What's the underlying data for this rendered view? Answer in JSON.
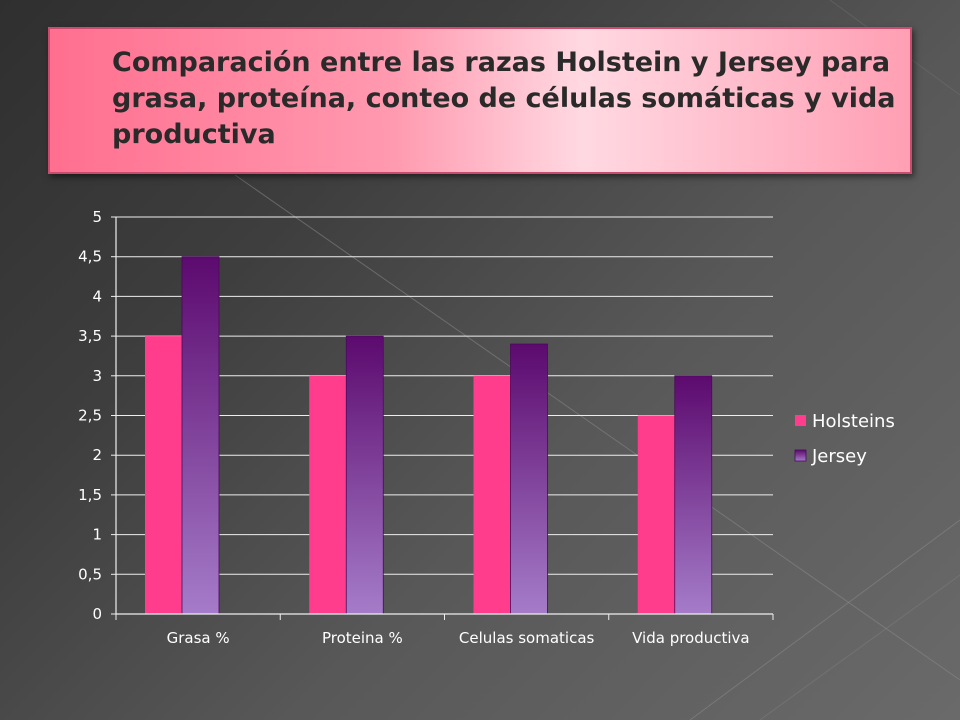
{
  "slide": {
    "title": "Comparación entre las razas Holstein y Jersey para grasa, proteína, conteo de células somáticas y vida productiva"
  },
  "colors": {
    "holsteins": "#ff3d8c",
    "jersey_top": "#5c0a6e",
    "jersey_bottom": "#a57cc9",
    "grid": "#eeeeee",
    "text": "#ffffff"
  },
  "chart_data": {
    "type": "bar",
    "title": "",
    "xlabel": "",
    "ylabel": "",
    "categories": [
      "Grasa %",
      "Proteina %",
      "Celulas somaticas",
      "Vida productiva"
    ],
    "series": [
      {
        "name": "Holsteins",
        "values": [
          3.5,
          3,
          3,
          2.5
        ]
      },
      {
        "name": "Jersey",
        "values": [
          4.5,
          3.5,
          3.4,
          3
        ]
      }
    ],
    "ylim": [
      0,
      5
    ],
    "yticks": [
      "0",
      "0,5",
      "1",
      "1,5",
      "2",
      "2,5",
      "3",
      "3,5",
      "4",
      "4,5",
      "5"
    ],
    "grid": true,
    "legend": "right"
  }
}
